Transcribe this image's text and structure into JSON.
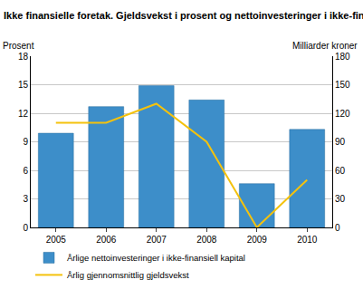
{
  "chart_data": {
    "type": "bar+line",
    "title": "Ikke finansielle foretak. Gjeldsvekst i prosent og nettoinvesteringer i ikke-finansiell kapital i milliarder kroner",
    "ylabel": "Prosent",
    "y2label": "Milliarder kroner",
    "categories": [
      "2005",
      "2006",
      "2007",
      "2008",
      "2009",
      "2010"
    ],
    "series": [
      {
        "name": "Årlige nettoinvesteringer i ikke-finansiell kapital",
        "type": "bar",
        "color": "#3d8ec9",
        "axis": "y2",
        "values": [
          99,
          127,
          149,
          134,
          46,
          103
        ]
      },
      {
        "name": "Årlig gjennomsnittlig gjeldsvekst",
        "type": "line",
        "color": "#f4c20d",
        "values": [
          11,
          11,
          13,
          9,
          0,
          5
        ]
      }
    ],
    "ylim": [
      0,
      18
    ],
    "yticks": [
      0,
      3,
      6,
      9,
      12,
      15,
      18
    ],
    "y2lim": [
      0,
      180
    ],
    "y2ticks": [
      0,
      30,
      60,
      90,
      120,
      150,
      180
    ],
    "grid": true,
    "legend": "bottom"
  }
}
